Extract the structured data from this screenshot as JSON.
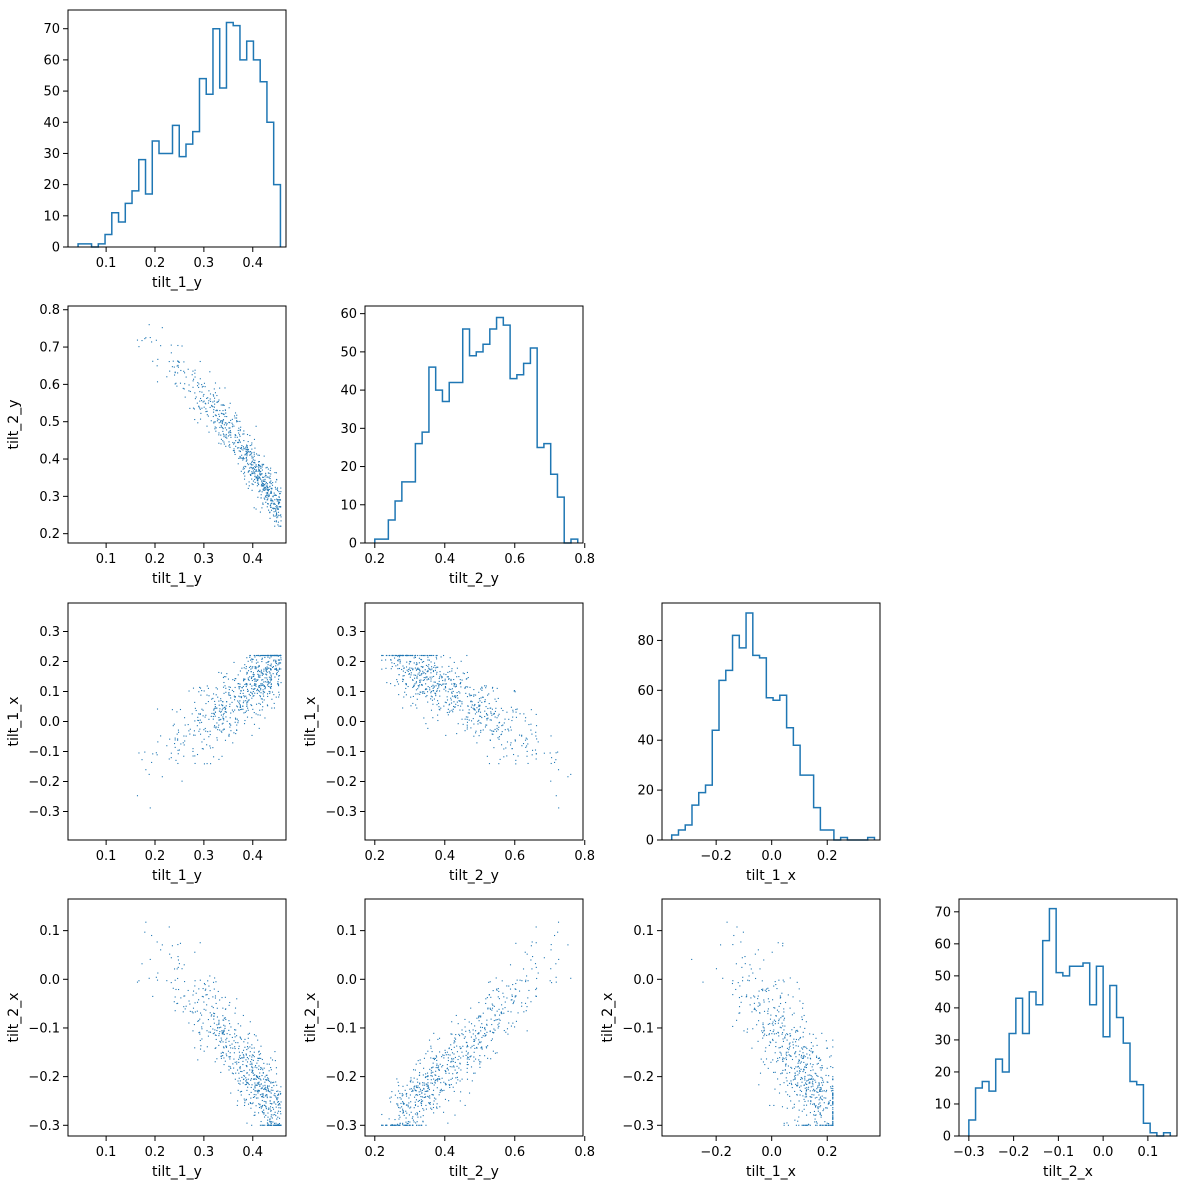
{
  "chart_data": {
    "type": "corner",
    "variables": [
      "tilt_1_y",
      "tilt_2_y",
      "tilt_1_x",
      "tilt_2_x"
    ],
    "color": "#1f77b4",
    "scatter_points_note_removed": true,
    "panels": [
      {
        "id": "hist-tilt_1_y",
        "type": "histogram",
        "row": 0,
        "col": 0,
        "xlabel": "tilt_1_y",
        "ylabel": "",
        "xlim": [
          0.022,
          0.468
        ],
        "ylim": [
          0,
          76
        ],
        "xticks": [
          0.1,
          0.2,
          0.3,
          0.4
        ],
        "xtick_labels": [
          "0.1",
          "0.2",
          "0.3",
          "0.4"
        ],
        "yticks": [
          0,
          10,
          20,
          30,
          40,
          50,
          60,
          70
        ],
        "ytick_labels": [
          "0",
          "10",
          "20",
          "30",
          "40",
          "50",
          "60",
          "70"
        ],
        "bin_edges": [
          0.0426,
          0.0564,
          0.0702,
          0.084,
          0.0978,
          0.1116,
          0.1254,
          0.1392,
          0.153,
          0.1668,
          0.1806,
          0.1944,
          0.2082,
          0.222,
          0.2358,
          0.2496,
          0.2634,
          0.2772,
          0.291,
          0.3048,
          0.3186,
          0.3324,
          0.3462,
          0.36,
          0.3738,
          0.3876,
          0.4014,
          0.4152,
          0.429,
          0.4428,
          0.4566
        ],
        "counts": [
          1,
          1,
          0,
          1,
          4,
          11,
          8,
          14,
          18,
          28,
          17,
          34,
          30,
          30,
          39,
          29,
          33,
          37,
          54,
          49,
          70,
          51,
          72,
          71,
          60,
          66,
          60,
          53,
          40,
          20
        ]
      },
      {
        "id": "scatter-tilt_1_y-tilt_2_y",
        "type": "scatter",
        "row": 1,
        "col": 0,
        "xlabel": "tilt_1_y",
        "ylabel": "tilt_2_y",
        "xlim": [
          0.022,
          0.468
        ],
        "ylim": [
          0.175,
          0.81
        ],
        "xticks": [
          0.1,
          0.2,
          0.3,
          0.4
        ],
        "xtick_labels": [
          "0.1",
          "0.2",
          "0.3",
          "0.4"
        ],
        "yticks": [
          0.2,
          0.3,
          0.4,
          0.5,
          0.6,
          0.7,
          0.8
        ],
        "ytick_labels": [
          "0.2",
          "0.3",
          "0.4",
          "0.5",
          "0.6",
          "0.7",
          "0.8"
        ],
        "point_count": 700
      },
      {
        "id": "hist-tilt_2_y",
        "type": "histogram",
        "row": 1,
        "col": 1,
        "xlabel": "tilt_2_y",
        "ylabel": "",
        "xlim": [
          0.172,
          0.795
        ],
        "ylim": [
          0,
          62
        ],
        "xticks": [
          0.2,
          0.4,
          0.6,
          0.8
        ],
        "xtick_labels": [
          "0.2",
          "0.4",
          "0.6",
          "0.8"
        ],
        "yticks": [
          0,
          10,
          20,
          30,
          40,
          50,
          60
        ],
        "ytick_labels": [
          "0",
          "10",
          "20",
          "30",
          "40",
          "50",
          "60"
        ],
        "bin_edges": [
          0.2,
          0.2193,
          0.2387,
          0.258,
          0.2773,
          0.2967,
          0.316,
          0.3353,
          0.3547,
          0.374,
          0.3933,
          0.4127,
          0.432,
          0.4513,
          0.4707,
          0.49,
          0.5093,
          0.5287,
          0.548,
          0.5673,
          0.5867,
          0.606,
          0.6253,
          0.6447,
          0.664,
          0.6833,
          0.7027,
          0.722,
          0.7413,
          0.7607,
          0.78
        ],
        "counts": [
          1,
          1,
          6,
          11,
          16,
          16,
          26,
          29,
          46,
          40,
          37,
          42,
          42,
          56,
          49,
          50,
          52,
          56,
          59,
          57,
          43,
          44,
          47,
          51,
          25,
          26,
          18,
          12,
          0,
          1
        ]
      },
      {
        "id": "scatter-tilt_1_y-tilt_1_x",
        "type": "scatter",
        "row": 2,
        "col": 0,
        "xlabel": "tilt_1_y",
        "ylabel": "tilt_1_x",
        "xlim": [
          0.022,
          0.468
        ],
        "ylim": [
          -0.395,
          0.395
        ],
        "xticks": [
          0.1,
          0.2,
          0.3,
          0.4
        ],
        "xtick_labels": [
          "0.1",
          "0.2",
          "0.3",
          "0.4"
        ],
        "yticks": [
          -0.3,
          -0.2,
          -0.1,
          0.0,
          0.1,
          0.2,
          0.3
        ],
        "ytick_labels": [
          "−0.3",
          "−0.2",
          "−0.1",
          "0.0",
          "0.1",
          "0.2",
          "0.3"
        ],
        "point_count": 700
      },
      {
        "id": "scatter-tilt_2_y-tilt_1_x",
        "type": "scatter",
        "row": 2,
        "col": 1,
        "xlabel": "tilt_2_y",
        "ylabel": "tilt_1_x",
        "xlim": [
          0.172,
          0.795
        ],
        "ylim": [
          -0.395,
          0.395
        ],
        "xticks": [
          0.2,
          0.4,
          0.6,
          0.8
        ],
        "xtick_labels": [
          "0.2",
          "0.4",
          "0.6",
          "0.8"
        ],
        "yticks": [
          -0.3,
          -0.2,
          -0.1,
          0.0,
          0.1,
          0.2,
          0.3
        ],
        "ytick_labels": [
          "−0.3",
          "−0.2",
          "−0.1",
          "0.0",
          "0.1",
          "0.2",
          "0.3"
        ],
        "point_count": 700
      },
      {
        "id": "hist-tilt_1_x",
        "type": "histogram",
        "row": 2,
        "col": 2,
        "xlabel": "tilt_1_x",
        "ylabel": "",
        "xlim": [
          -0.395,
          0.39
        ],
        "ylim": [
          0,
          95
        ],
        "xticks": [
          -0.2,
          0.0,
          0.2
        ],
        "xtick_labels": [
          "−0.2",
          "0.0",
          "0.2"
        ],
        "yticks": [
          0,
          20,
          40,
          60,
          80
        ],
        "ytick_labels": [
          "0",
          "20",
          "40",
          "60",
          "80"
        ],
        "bin_edges": [
          -0.36,
          -0.3357,
          -0.3113,
          -0.287,
          -0.2627,
          -0.2383,
          -0.214,
          -0.1897,
          -0.1653,
          -0.141,
          -0.1167,
          -0.0923,
          -0.068,
          -0.0437,
          -0.0193,
          0.005,
          0.0293,
          0.0537,
          0.078,
          0.1023,
          0.1267,
          0.151,
          0.1753,
          0.1997,
          0.224,
          0.2483,
          0.2727,
          0.297,
          0.3213,
          0.3457,
          0.37
        ],
        "counts": [
          2,
          4,
          6,
          14,
          19,
          22,
          44,
          64,
          68,
          82,
          77,
          91,
          74,
          73,
          57,
          56,
          58,
          45,
          38,
          26,
          26,
          13,
          4,
          4,
          0,
          1,
          0,
          0,
          0,
          1
        ]
      },
      {
        "id": "scatter-tilt_1_y-tilt_2_x",
        "type": "scatter",
        "row": 3,
        "col": 0,
        "xlabel": "tilt_1_y",
        "ylabel": "tilt_2_x",
        "xlim": [
          0.022,
          0.468
        ],
        "ylim": [
          -0.322,
          0.165
        ],
        "xticks": [
          0.1,
          0.2,
          0.3,
          0.4
        ],
        "xtick_labels": [
          "0.1",
          "0.2",
          "0.3",
          "0.4"
        ],
        "yticks": [
          -0.3,
          -0.2,
          -0.1,
          0.0,
          0.1
        ],
        "ytick_labels": [
          "−0.3",
          "−0.2",
          "−0.1",
          "0.0",
          "0.1"
        ],
        "point_count": 700
      },
      {
        "id": "scatter-tilt_2_y-tilt_2_x",
        "type": "scatter",
        "row": 3,
        "col": 1,
        "xlabel": "tilt_2_y",
        "ylabel": "tilt_2_x",
        "xlim": [
          0.172,
          0.795
        ],
        "ylim": [
          -0.322,
          0.165
        ],
        "xticks": [
          0.2,
          0.4,
          0.6,
          0.8
        ],
        "xtick_labels": [
          "0.2",
          "0.4",
          "0.6",
          "0.8"
        ],
        "yticks": [
          -0.3,
          -0.2,
          -0.1,
          0.0,
          0.1
        ],
        "ytick_labels": [
          "−0.3",
          "−0.2",
          "−0.1",
          "0.0",
          "0.1"
        ],
        "point_count": 700
      },
      {
        "id": "scatter-tilt_1_x-tilt_2_x",
        "type": "scatter",
        "row": 3,
        "col": 2,
        "xlabel": "tilt_1_x",
        "ylabel": "tilt_2_x",
        "xlim": [
          -0.395,
          0.39
        ],
        "ylim": [
          -0.322,
          0.165
        ],
        "xticks": [
          -0.2,
          0.0,
          0.2
        ],
        "xtick_labels": [
          "−0.2",
          "0.0",
          "0.2"
        ],
        "yticks": [
          -0.3,
          -0.2,
          -0.1,
          0.0,
          0.1
        ],
        "ytick_labels": [
          "−0.3",
          "−0.2",
          "−0.1",
          "0.0",
          "0.1"
        ],
        "point_count": 700
      },
      {
        "id": "hist-tilt_2_x",
        "type": "histogram",
        "row": 3,
        "col": 3,
        "xlabel": "tilt_2_x",
        "ylabel": "",
        "xlim": [
          -0.322,
          0.165
        ],
        "ylim": [
          0,
          74
        ],
        "xticks": [
          -0.3,
          -0.2,
          -0.1,
          0.0,
          0.1
        ],
        "xtick_labels": [
          "−0.3",
          "−0.2",
          "−0.1",
          "0.0",
          "0.1"
        ],
        "yticks": [
          0,
          10,
          20,
          30,
          40,
          50,
          60,
          70
        ],
        "ytick_labels": [
          "0",
          "10",
          "20",
          "30",
          "40",
          "50",
          "60",
          "70"
        ],
        "bin_edges": [
          -0.3,
          -0.285,
          -0.27,
          -0.255,
          -0.24,
          -0.225,
          -0.21,
          -0.195,
          -0.18,
          -0.165,
          -0.15,
          -0.135,
          -0.12,
          -0.105,
          -0.09,
          -0.075,
          -0.06,
          -0.045,
          -0.03,
          -0.015,
          0.0,
          0.015,
          0.03,
          0.045,
          0.06,
          0.075,
          0.09,
          0.105,
          0.12,
          0.135,
          0.15
        ],
        "counts": [
          5,
          15,
          17,
          14,
          24,
          20,
          32,
          43,
          32,
          45,
          41,
          61,
          71,
          51,
          50,
          53,
          53,
          54,
          41,
          53,
          31,
          47,
          37,
          29,
          17,
          16,
          4,
          1,
          0,
          1
        ]
      }
    ]
  }
}
